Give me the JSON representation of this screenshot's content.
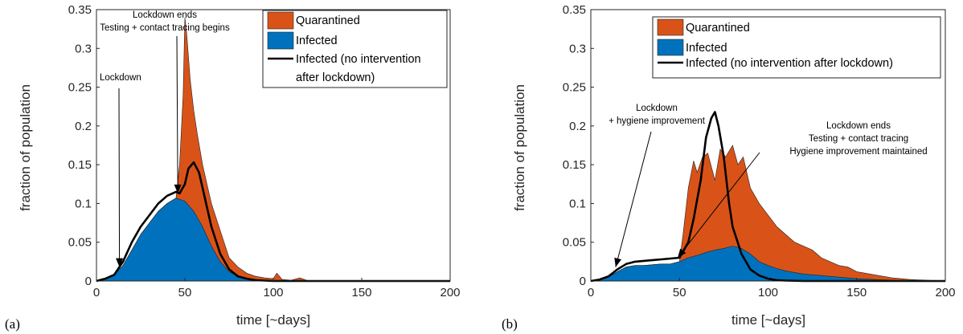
{
  "colors": {
    "quarantined": "#D95319",
    "infected": "#0072BD",
    "no_intervention": "#000000",
    "axis": "#262626"
  },
  "chart_data": [
    {
      "panel_label": "(a)",
      "type": "area",
      "xlabel": "time [~days]",
      "ylabel": "fraction of population",
      "xlim": [
        0,
        200
      ],
      "ylim": [
        0,
        0.35
      ],
      "xticks": [
        "0",
        "50",
        "100",
        "150",
        "200"
      ],
      "yticks": [
        "0",
        "0.05",
        "0.1",
        "0.15",
        "0.2",
        "0.25",
        "0.3",
        "0.35"
      ],
      "grid": false,
      "legend_position": "top-right",
      "series": [
        {
          "name": "Quarantined",
          "style": "stacked-area",
          "x": [
            0,
            5,
            10,
            15,
            20,
            25,
            30,
            35,
            40,
            45,
            47,
            49,
            50,
            51,
            52,
            53,
            55,
            57,
            60,
            65,
            70,
            75,
            80,
            85,
            90,
            95,
            100,
            102,
            105,
            110,
            115,
            120,
            200
          ],
          "y": [
            0,
            0.003,
            0.008,
            0.02,
            0.04,
            0.06,
            0.075,
            0.09,
            0.1,
            0.107,
            0.15,
            0.24,
            0.34,
            0.32,
            0.29,
            0.26,
            0.22,
            0.19,
            0.15,
            0.1,
            0.065,
            0.03,
            0.018,
            0.01,
            0.006,
            0.004,
            0.003,
            0.01,
            0.002,
            0.001,
            0.004,
            0,
            0
          ]
        },
        {
          "name": "Infected",
          "style": "stacked-area",
          "x": [
            0,
            5,
            10,
            15,
            20,
            25,
            30,
            35,
            40,
            45,
            50,
            55,
            60,
            65,
            70,
            75,
            80,
            85,
            90,
            95,
            100,
            105,
            110,
            120,
            200
          ],
          "y": [
            0,
            0.003,
            0.008,
            0.02,
            0.04,
            0.06,
            0.075,
            0.09,
            0.1,
            0.107,
            0.103,
            0.09,
            0.07,
            0.045,
            0.025,
            0.012,
            0.006,
            0.003,
            0.002,
            0.001,
            0.0005,
            0.0002,
            0,
            0,
            0
          ]
        },
        {
          "name": "Infected (no intervention after lockdown)",
          "style": "line",
          "x": [
            0,
            5,
            10,
            15,
            20,
            25,
            30,
            35,
            40,
            45,
            47,
            50,
            52,
            55,
            58,
            60,
            65,
            70,
            75,
            80,
            85,
            90,
            95,
            100,
            110,
            200
          ],
          "y": [
            0,
            0.003,
            0.008,
            0.025,
            0.05,
            0.07,
            0.085,
            0.1,
            0.11,
            0.115,
            0.113,
            0.125,
            0.145,
            0.153,
            0.14,
            0.12,
            0.07,
            0.035,
            0.015,
            0.006,
            0.003,
            0.001,
            0.0005,
            0,
            0,
            0
          ]
        }
      ],
      "annotations": [
        {
          "lines": [
            "Lockdown"
          ],
          "arrow_to": [
            13,
            0.018
          ]
        },
        {
          "lines": [
            "Lockdown ends",
            "Testing + contact tracing begins"
          ],
          "arrow_to": [
            46,
            0.113
          ]
        }
      ]
    },
    {
      "panel_label": "(b)",
      "type": "area",
      "xlabel": "time [~days]",
      "ylabel": "fraction of population",
      "xlim": [
        0,
        200
      ],
      "ylim": [
        0,
        0.35
      ],
      "xticks": [
        "0",
        "50",
        "100",
        "150",
        "200"
      ],
      "yticks": [
        "0",
        "0.05",
        "0.1",
        "0.15",
        "0.2",
        "0.25",
        "0.3",
        "0.35"
      ],
      "grid": false,
      "legend_position": "top-right",
      "series": [
        {
          "name": "Quarantined",
          "style": "stacked-area",
          "x": [
            0,
            5,
            10,
            15,
            20,
            25,
            30,
            35,
            40,
            45,
            50,
            52,
            55,
            58,
            60,
            63,
            66,
            70,
            73,
            76,
            80,
            83,
            86,
            90,
            95,
            100,
            105,
            110,
            115,
            120,
            125,
            130,
            135,
            140,
            145,
            150,
            155,
            160,
            170,
            180,
            200
          ],
          "y": [
            0,
            0.002,
            0.005,
            0.012,
            0.018,
            0.02,
            0.02,
            0.021,
            0.022,
            0.022,
            0.025,
            0.06,
            0.12,
            0.155,
            0.14,
            0.16,
            0.165,
            0.13,
            0.17,
            0.16,
            0.175,
            0.15,
            0.16,
            0.12,
            0.1,
            0.085,
            0.07,
            0.06,
            0.05,
            0.045,
            0.04,
            0.03,
            0.025,
            0.02,
            0.018,
            0.012,
            0.01,
            0.008,
            0.004,
            0.002,
            0
          ]
        },
        {
          "name": "Infected",
          "style": "stacked-area",
          "x": [
            0,
            5,
            10,
            15,
            20,
            25,
            30,
            35,
            40,
            45,
            50,
            55,
            60,
            65,
            70,
            75,
            80,
            85,
            90,
            95,
            100,
            105,
            110,
            115,
            120,
            125,
            130,
            135,
            140,
            145,
            150,
            160,
            170,
            180,
            200
          ],
          "y": [
            0,
            0.002,
            0.005,
            0.012,
            0.018,
            0.02,
            0.02,
            0.021,
            0.022,
            0.022,
            0.025,
            0.03,
            0.033,
            0.037,
            0.04,
            0.042,
            0.045,
            0.042,
            0.035,
            0.025,
            0.02,
            0.016,
            0.013,
            0.011,
            0.009,
            0.008,
            0.007,
            0.006,
            0.005,
            0.004,
            0.003,
            0.002,
            0.001,
            0.0005,
            0
          ]
        },
        {
          "name": "Infected (no intervention after lockdown)",
          "style": "line",
          "x": [
            0,
            5,
            10,
            15,
            20,
            25,
            30,
            35,
            40,
            45,
            50,
            55,
            58,
            62,
            65,
            68,
            70,
            72,
            75,
            78,
            80,
            85,
            90,
            95,
            100,
            105,
            110,
            120,
            200
          ],
          "y": [
            0,
            0.002,
            0.006,
            0.015,
            0.022,
            0.025,
            0.026,
            0.027,
            0.028,
            0.029,
            0.03,
            0.05,
            0.08,
            0.13,
            0.185,
            0.21,
            0.218,
            0.2,
            0.16,
            0.1,
            0.07,
            0.035,
            0.015,
            0.007,
            0.003,
            0.001,
            0.0005,
            0,
            0
          ]
        }
      ],
      "annotations": [
        {
          "lines": [
            "Lockdown",
            "+ hygiene improvement"
          ],
          "arrow_to": [
            14,
            0.018
          ]
        },
        {
          "lines": [
            "Lockdown ends",
            "Testing + contact tracing",
            "Hygiene improvement maintained"
          ],
          "arrow_to": [
            49,
            0.03
          ]
        }
      ]
    }
  ]
}
